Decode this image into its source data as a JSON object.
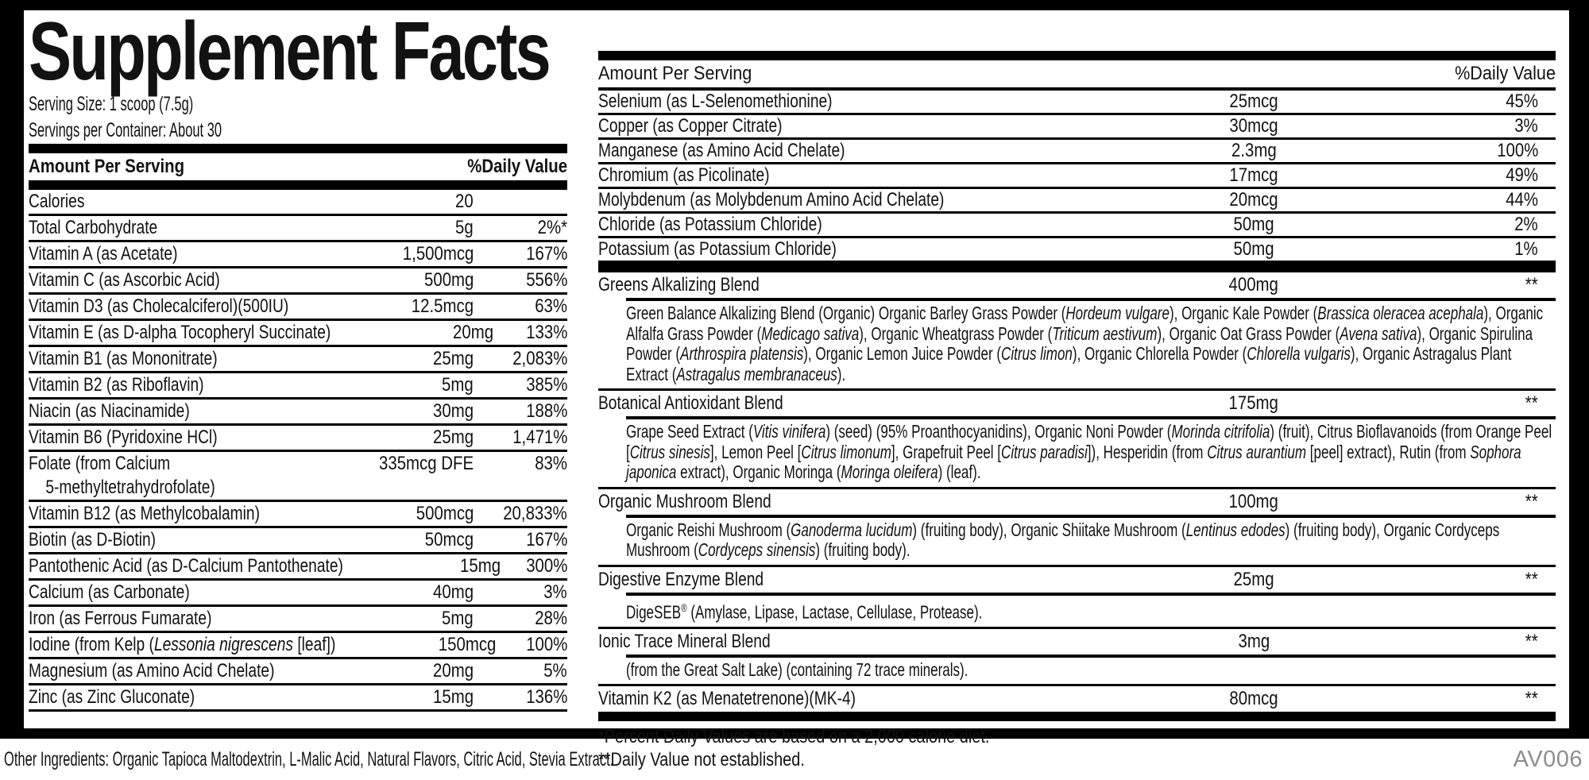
{
  "colors": {
    "ink": "#121212",
    "rule_black": "#000000",
    "code_gray": "#8e8e8e",
    "background": "#ffffff"
  },
  "label": {
    "title": "Supplement Facts",
    "serving_size": "Serving Size: 1 scoop (7.5g)",
    "servings_per_container": "Servings per Container: About 30",
    "left_header": {
      "amount": "Amount Per Serving",
      "daily_value": "%Daily Value"
    },
    "right_header": {
      "amount": "Amount Per Serving",
      "daily_value": "%Daily Value"
    },
    "left_rows": [
      {
        "name": [
          {
            "t": "Calories"
          }
        ],
        "amount": "20",
        "dv": ""
      },
      {
        "name": [
          {
            "t": "Total Carbohydrate"
          }
        ],
        "amount": "5g",
        "dv": "2%*"
      },
      {
        "name": [
          {
            "t": "Vitamin A (as Acetate)"
          }
        ],
        "amount": "1,500mcg",
        "dv": "167%"
      },
      {
        "name": [
          {
            "t": "Vitamin C (as Ascorbic Acid)"
          }
        ],
        "amount": "500mg",
        "dv": "556%"
      },
      {
        "name": [
          {
            "t": "Vitamin D3 (as Cholecalciferol)(500IU)"
          }
        ],
        "amount": "12.5mcg",
        "dv": "63%"
      },
      {
        "name": [
          {
            "t": "Vitamin E (as D-alpha Tocopheryl Succinate)"
          }
        ],
        "amount": "20mg",
        "dv": "133%"
      },
      {
        "name": [
          {
            "t": "Vitamin B1 (as Mononitrate)"
          }
        ],
        "amount": "25mg",
        "dv": "2,083%"
      },
      {
        "name": [
          {
            "t": "Vitamin B2 (as Riboflavin)"
          }
        ],
        "amount": "5mg",
        "dv": "385%"
      },
      {
        "name": [
          {
            "t": "Niacin (as Niacinamide)"
          }
        ],
        "amount": "30mg",
        "dv": "188%"
      },
      {
        "name": [
          {
            "t": "Vitamin B6 (Pyridoxine HCl)"
          }
        ],
        "amount": "25mg",
        "dv": "1,471%"
      },
      {
        "name": [
          {
            "t": "Folate (from Calcium"
          },
          {
            "br": 1
          },
          {
            "t": "    5-methyltetrahydrofolate)"
          }
        ],
        "amount": "335mcg DFE",
        "dv": "83%"
      },
      {
        "name": [
          {
            "t": "Vitamin B12 (as Methylcobalamin)"
          }
        ],
        "amount": "500mcg",
        "dv": "20,833%"
      },
      {
        "name": [
          {
            "t": "Biotin (as D-Biotin)"
          }
        ],
        "amount": "50mcg",
        "dv": "167%"
      },
      {
        "name": [
          {
            "t": "Pantothenic Acid (as D-Calcium Pantothenate)"
          }
        ],
        "amount": "15mg",
        "dv": "300%"
      },
      {
        "name": [
          {
            "t": "Calcium (as Carbonate)"
          }
        ],
        "amount": "40mg",
        "dv": "3%"
      },
      {
        "name": [
          {
            "t": "Iron (as Ferrous Fumarate)"
          }
        ],
        "amount": "5mg",
        "dv": "28%"
      },
      {
        "name": [
          {
            "t": "Iodine (from Kelp ("
          },
          {
            "t": "Lessonia nigrescens",
            "i": 1
          },
          {
            "t": " [leaf])"
          }
        ],
        "amount": "150mcg",
        "dv": "100%"
      },
      {
        "name": [
          {
            "t": "Magnesium (as Amino Acid Chelate)"
          }
        ],
        "amount": "20mg",
        "dv": "5%"
      },
      {
        "name": [
          {
            "t": "Zinc (as Zinc Gluconate)"
          }
        ],
        "amount": "15mg",
        "dv": "136%"
      }
    ],
    "right_rows": [
      {
        "name": "Selenium (as L-Selenomethionine)",
        "amount": "25mcg",
        "dv": "45%"
      },
      {
        "name": "Copper (as Copper Citrate)",
        "amount": "30mcg",
        "dv": "3%"
      },
      {
        "name": "Manganese (as Amino Acid Chelate)",
        "amount": "2.3mg",
        "dv": "100%"
      },
      {
        "name": "Chromium (as Picolinate)",
        "amount": "17mcg",
        "dv": "49%"
      },
      {
        "name": "Molybdenum (as Molybdenum Amino Acid Chelate)",
        "amount": "20mcg",
        "dv": "44%"
      },
      {
        "name": "Chloride (as Potassium Chloride)",
        "amount": "50mg",
        "dv": "2%"
      },
      {
        "name": "Potassium (as Potassium Chloride)",
        "amount": "50mg",
        "dv": "1%"
      }
    ],
    "sections": [
      {
        "name": "Greens Alkalizing Blend",
        "amount": "400mg",
        "dv": "**",
        "desc": [
          {
            "t": "Green Balance Alkalizing Blend (Organic) Organic Barley Grass Powder ("
          },
          {
            "t": "Hordeum vulgare",
            "i": 1
          },
          {
            "t": "), Organic Kale Powder ("
          },
          {
            "t": "Brassica oleracea acephala",
            "i": 1
          },
          {
            "t": "), Organic Alfalfa Grass Powder ("
          },
          {
            "t": "Medicago sativa",
            "i": 1
          },
          {
            "t": "), Organic Wheatgrass Powder ("
          },
          {
            "t": "Triticum aestivum",
            "i": 1
          },
          {
            "t": "), Organic Oat Grass Powder ("
          },
          {
            "t": "Avena sativa",
            "i": 1
          },
          {
            "t": "), Organic Spirulina Powder ("
          },
          {
            "t": "Arthrospira platensis",
            "i": 1
          },
          {
            "t": "), Organic Lemon Juice Powder ("
          },
          {
            "t": "Citrus limon",
            "i": 1
          },
          {
            "t": "), Organic Chlorella Powder ("
          },
          {
            "t": "Chlorella vulgaris",
            "i": 1
          },
          {
            "t": "), Organic Astragalus Plant Extract ("
          },
          {
            "t": "Astragalus membranaceus",
            "i": 1
          },
          {
            "t": ")."
          }
        ]
      },
      {
        "name": "Botanical Antioxidant Blend",
        "amount": "175mg",
        "dv": "**",
        "desc": [
          {
            "t": "Grape Seed Extract ("
          },
          {
            "t": "Vitis vinifera",
            "i": 1
          },
          {
            "t": ") (seed) (95% Proanthocyanidins), Organic Noni Powder ("
          },
          {
            "t": "Morinda citrifolia",
            "i": 1
          },
          {
            "t": ") (fruit), Citrus Bioflavanoids (from Orange Peel ["
          },
          {
            "t": "Citrus sinesis",
            "i": 1
          },
          {
            "t": "], Lemon Peel ["
          },
          {
            "t": "Citrus limonum",
            "i": 1
          },
          {
            "t": "], Grapefruit Peel ["
          },
          {
            "t": "Citrus paradisi",
            "i": 1
          },
          {
            "t": "]), Hesperidin (from "
          },
          {
            "t": "Citrus aurantium",
            "i": 1
          },
          {
            "t": " [peel] extract), Rutin (from "
          },
          {
            "t": "Sophora japonica",
            "i": 1
          },
          {
            "t": " extract), Organic Moringa ("
          },
          {
            "t": "Moringa oleifera",
            "i": 1
          },
          {
            "t": ") (leaf)."
          }
        ]
      },
      {
        "name": "Organic Mushroom Blend",
        "amount": "100mg",
        "dv": "**",
        "desc": [
          {
            "t": "Organic Reishi Mushroom ("
          },
          {
            "t": "Ganoderma lucidum",
            "i": 1
          },
          {
            "t": ") (fruiting body), Organic Shiitake Mushroom ("
          },
          {
            "t": "Lentinus edodes",
            "i": 1
          },
          {
            "t": ") (fruiting body), Organic Cordyceps Mushroom ("
          },
          {
            "t": "Cordyceps sinensis",
            "i": 1
          },
          {
            "t": ") (fruiting body)."
          }
        ]
      },
      {
        "name": "Digestive Enzyme Blend",
        "amount": "25mg",
        "dv": "**",
        "desc": [
          {
            "t": "DigeSEB"
          },
          {
            "t": "®",
            "sup": 1
          },
          {
            "t": " (Amylase, Lipase, Lactase, Cellulase, Protease)."
          }
        ]
      },
      {
        "name": "Ionic Trace Mineral Blend",
        "amount": "3mg",
        "dv": "**",
        "desc": [
          {
            "t": "(from the Great Salt Lake) (containing 72 trace minerals)."
          }
        ]
      },
      {
        "name": "Vitamin K2 (as Menatetrenone)(MK-4)",
        "amount": "80mcg",
        "dv": "**"
      }
    ],
    "footnotes": [
      "*Percent Daily Values are based on a 2,000 calorie diet.",
      "**Daily Value not established."
    ]
  },
  "footer": {
    "other_ingredients": "Other Ingredients: Organic Tapioca Maltodextrin, L-Malic Acid, Natural Flavors, Citric Acid, Stevia Extract.",
    "code": "AV006"
  }
}
